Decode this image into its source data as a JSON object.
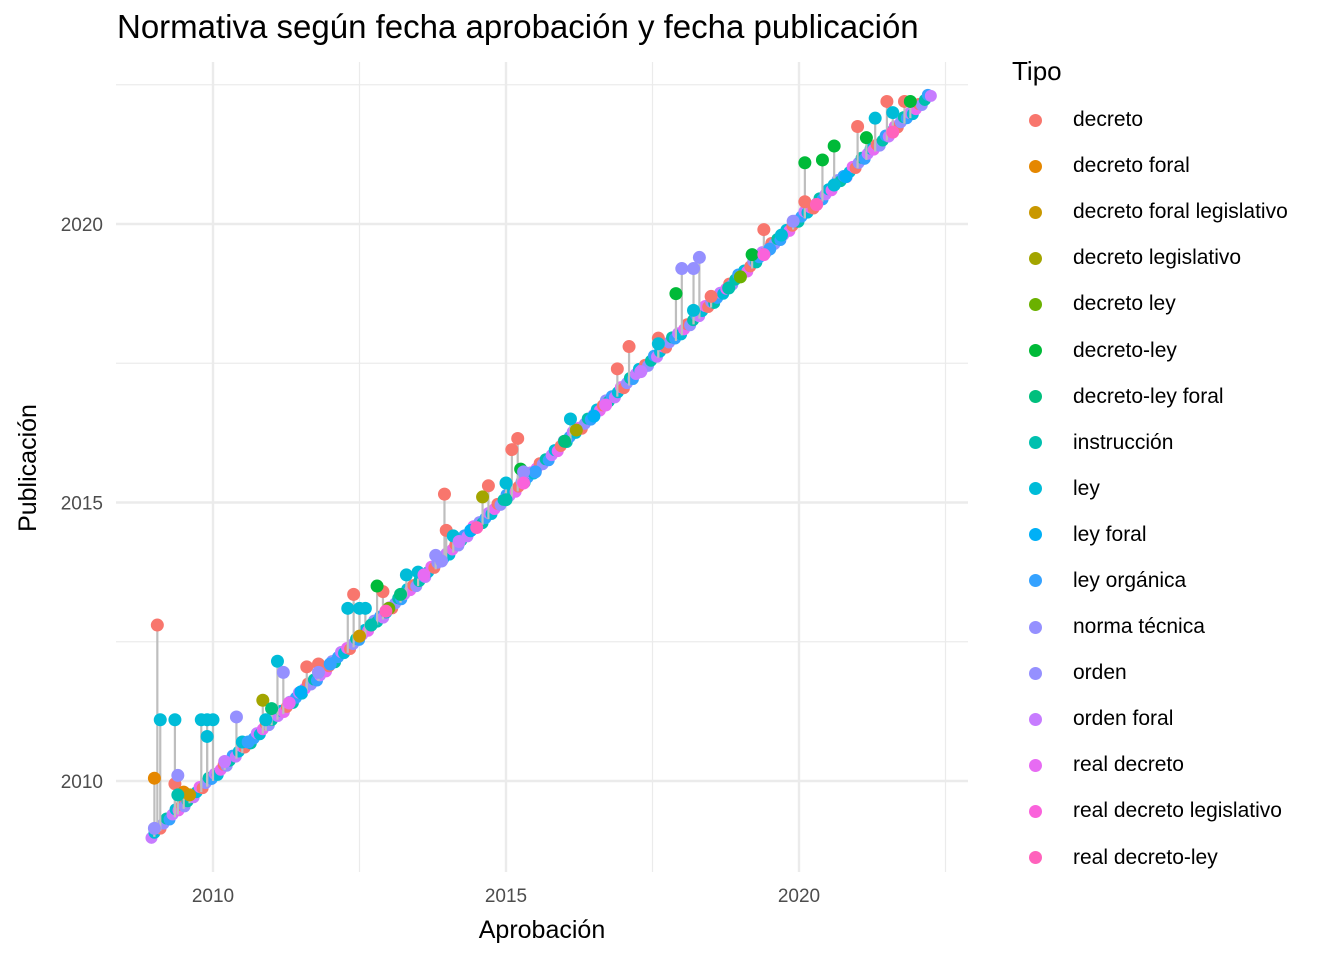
{
  "chart_data": {
    "type": "scatter",
    "title": "Normativa según fecha aprobación y fecha publicación",
    "xlabel": "Aprobación",
    "ylabel": "Publicación",
    "xlim": [
      2008.2,
      2022.9
    ],
    "ylim": [
      2008.2,
      2022.9
    ],
    "x_ticks": [
      2010,
      2015,
      2020
    ],
    "y_ticks": [
      2010,
      2015,
      2020
    ],
    "x_tick_labels": [
      "2010",
      "2015",
      "2020"
    ],
    "y_tick_labels": [
      "2010",
      "2015",
      "2020"
    ],
    "grid": true,
    "legend": {
      "title": "Tipo",
      "position": "right"
    },
    "segments": "vertical grey line from y = x up to each point's publication date",
    "series": [
      {
        "name": "decreto",
        "color": "#F8766D",
        "points": [
          [
            2009.05,
            2012.8
          ],
          [
            2009.35,
            2009.95
          ],
          [
            2011.6,
            2012.05
          ],
          [
            2011.8,
            2012.1
          ],
          [
            2012.4,
            2013.35
          ],
          [
            2012.9,
            2013.4
          ],
          [
            2013.95,
            2015.15
          ],
          [
            2013.98,
            2014.5
          ],
          [
            2014.7,
            2015.3
          ],
          [
            2015.1,
            2015.95
          ],
          [
            2015.2,
            2016.15
          ],
          [
            2016.9,
            2017.4
          ],
          [
            2017.1,
            2017.8
          ],
          [
            2017.6,
            2017.95
          ],
          [
            2018.5,
            2018.7
          ],
          [
            2019.4,
            2019.9
          ],
          [
            2020.1,
            2020.4
          ],
          [
            2021.0,
            2021.75
          ],
          [
            2021.5,
            2022.2
          ],
          [
            2021.8,
            2022.2
          ]
        ]
      },
      {
        "name": "decreto foral",
        "color": "#E58700",
        "points": [
          [
            2009.0,
            2010.05
          ],
          [
            2009.5,
            2009.8
          ]
        ]
      },
      {
        "name": "decreto foral legislativo",
        "color": "#C99800",
        "points": [
          [
            2009.6,
            2009.75
          ],
          [
            2012.5,
            2012.6
          ]
        ]
      },
      {
        "name": "decreto legislativo",
        "color": "#A3A500",
        "points": [
          [
            2010.85,
            2011.45
          ],
          [
            2014.6,
            2015.1
          ],
          [
            2016.2,
            2016.3
          ]
        ]
      },
      {
        "name": "decreto ley",
        "color": "#6BB100",
        "points": [
          [
            2013.0,
            2013.1
          ],
          [
            2019.0,
            2019.05
          ]
        ]
      },
      {
        "name": "decreto-ley",
        "color": "#00BA38",
        "points": [
          [
            2012.8,
            2013.5
          ],
          [
            2015.25,
            2015.6
          ],
          [
            2017.9,
            2018.75
          ],
          [
            2019.2,
            2019.45
          ],
          [
            2020.1,
            2021.1
          ],
          [
            2020.4,
            2021.15
          ],
          [
            2020.6,
            2021.4
          ],
          [
            2021.15,
            2021.55
          ],
          [
            2021.9,
            2022.2
          ]
        ]
      },
      {
        "name": "decreto-ley foral",
        "color": "#00BF7D",
        "points": [
          [
            2011.0,
            2011.3
          ],
          [
            2013.2,
            2013.35
          ],
          [
            2016.0,
            2016.1
          ]
        ]
      },
      {
        "name": "instrucción",
        "color": "#00C0AF",
        "points": [
          [
            2009.4,
            2009.75
          ],
          [
            2012.7,
            2012.8
          ],
          [
            2015.0,
            2015.05
          ],
          [
            2018.8,
            2018.85
          ]
        ]
      },
      {
        "name": "ley",
        "color": "#00BCD8",
        "points": [
          [
            2009.1,
            2011.1
          ],
          [
            2009.35,
            2011.1
          ],
          [
            2009.8,
            2011.1
          ],
          [
            2009.9,
            2011.1
          ],
          [
            2010.0,
            2011.1
          ],
          [
            2009.9,
            2010.8
          ],
          [
            2010.5,
            2010.7
          ],
          [
            2010.9,
            2011.1
          ],
          [
            2011.1,
            2012.15
          ],
          [
            2012.3,
            2013.1
          ],
          [
            2012.5,
            2013.1
          ],
          [
            2012.6,
            2013.1
          ],
          [
            2013.3,
            2013.7
          ],
          [
            2013.5,
            2013.75
          ],
          [
            2014.1,
            2014.4
          ],
          [
            2015.0,
            2015.35
          ],
          [
            2016.1,
            2016.5
          ],
          [
            2017.6,
            2017.85
          ],
          [
            2018.2,
            2018.45
          ],
          [
            2019.7,
            2019.8
          ],
          [
            2020.6,
            2020.7
          ],
          [
            2021.3,
            2021.9
          ],
          [
            2021.6,
            2022.0
          ]
        ]
      },
      {
        "name": "ley foral",
        "color": "#00B0F6",
        "points": [
          [
            2011.5,
            2011.6
          ],
          [
            2014.4,
            2014.5
          ],
          [
            2016.5,
            2016.55
          ],
          [
            2020.8,
            2020.85
          ]
        ]
      },
      {
        "name": "ley orgánica",
        "color": "#35A2FF",
        "points": [
          [
            2010.6,
            2010.7
          ],
          [
            2012.0,
            2012.1
          ],
          [
            2015.5,
            2015.55
          ],
          [
            2019.5,
            2019.55
          ]
        ]
      },
      {
        "name": "norma técnica",
        "color": "#9590FF",
        "points": [
          [
            2009.0,
            2009.15
          ],
          [
            2013.9,
            2013.95
          ]
        ]
      },
      {
        "name": "orden",
        "color": "#9590FF",
        "points": [
          [
            2009.4,
            2010.1
          ],
          [
            2010.4,
            2011.15
          ],
          [
            2011.2,
            2011.95
          ],
          [
            2011.8,
            2011.95
          ],
          [
            2013.8,
            2014.05
          ],
          [
            2015.3,
            2015.55
          ],
          [
            2018.0,
            2019.2
          ],
          [
            2018.2,
            2019.2
          ],
          [
            2018.3,
            2019.4
          ],
          [
            2019.9,
            2020.05
          ]
        ]
      },
      {
        "name": "orden foral",
        "color": "#C77CFF",
        "points": [
          [
            2010.2,
            2010.35
          ],
          [
            2014.2,
            2014.3
          ],
          [
            2017.3,
            2017.35
          ]
        ]
      },
      {
        "name": "real decreto",
        "color": "#E76BF3",
        "points": [
          [
            2011.3,
            2011.4
          ],
          [
            2013.6,
            2013.7
          ],
          [
            2016.7,
            2016.75
          ],
          [
            2020.3,
            2020.35
          ]
        ]
      },
      {
        "name": "real decreto legislativo",
        "color": "#FA62DB",
        "points": [
          [
            2015.3,
            2015.35
          ],
          [
            2019.4,
            2019.45
          ]
        ]
      },
      {
        "name": "real decreto-ley",
        "color": "#FF62BC",
        "points": [
          [
            2012.95,
            2013.05
          ],
          [
            2014.5,
            2014.55
          ],
          [
            2020.3,
            2020.35
          ],
          [
            2021.6,
            2021.65
          ]
        ]
      }
    ]
  }
}
